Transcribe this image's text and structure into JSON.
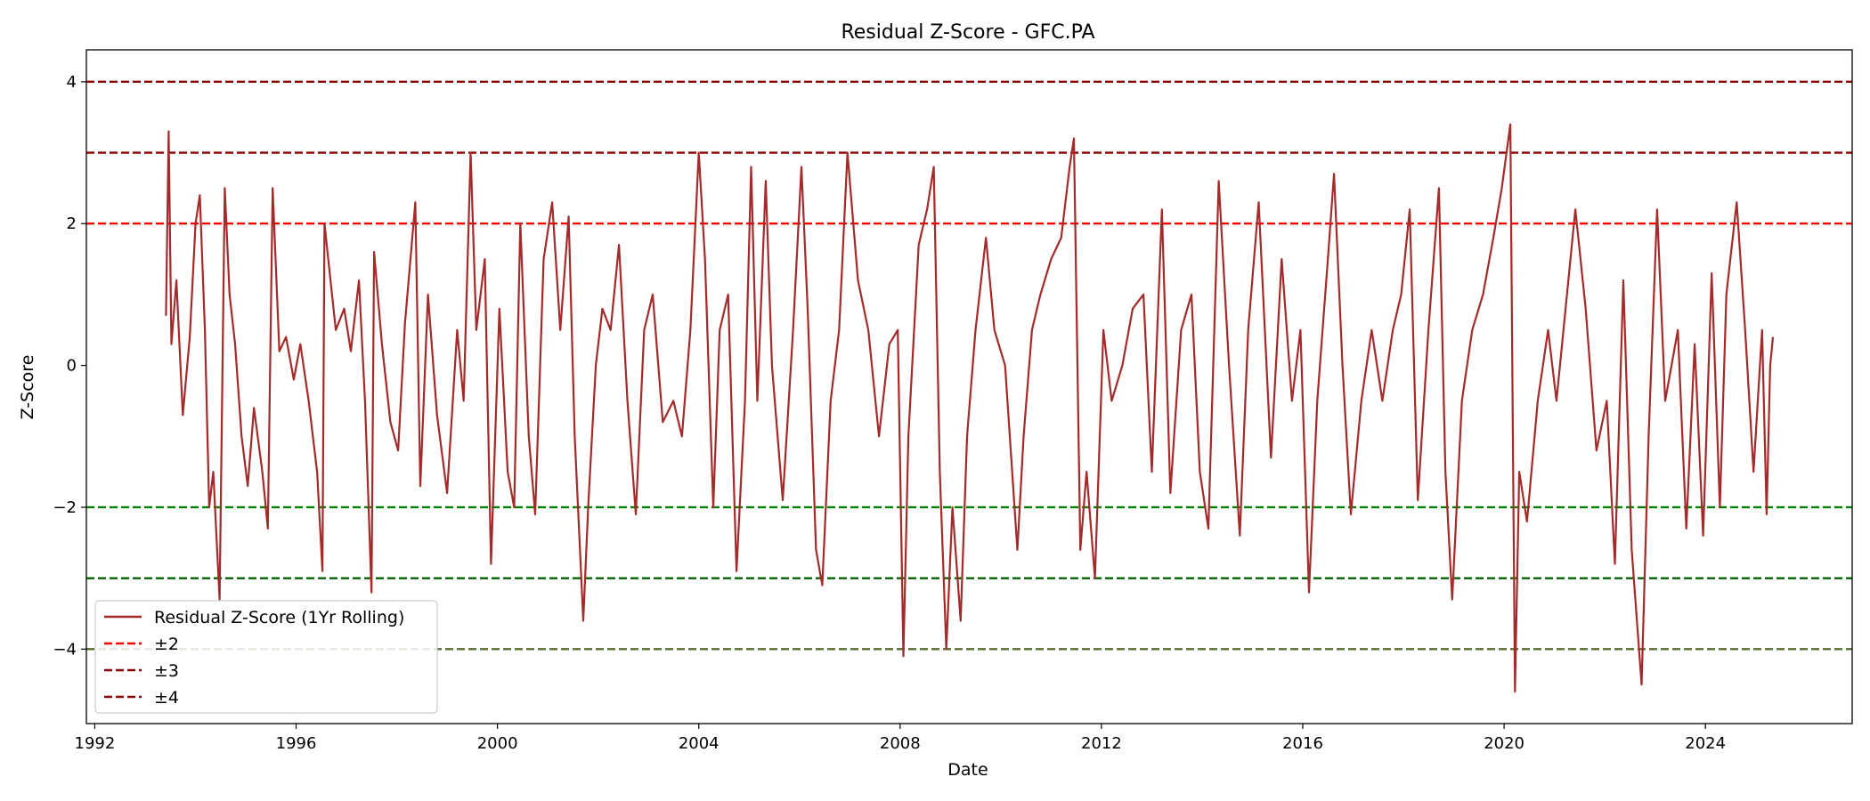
{
  "chart_data": {
    "type": "line",
    "title": "Residual Z-Score - GFC.PA",
    "xlabel": "Date",
    "ylabel": "Z-Score",
    "xlim": [
      "1991-11-01",
      "2026-12-01"
    ],
    "ylim": [
      -5.05,
      4.45
    ],
    "x_ticks": [
      "1992",
      "1996",
      "2000",
      "2004",
      "2008",
      "2012",
      "2016",
      "2020",
      "2024"
    ],
    "y_ticks": [
      4,
      2,
      0,
      -2,
      -4
    ],
    "y_tick_labels": [
      "4",
      "2",
      "0",
      "−2",
      "−4"
    ],
    "grid": false,
    "legend_position": "lower-left",
    "series": [
      {
        "name": "Residual Z-Score (1Yr Rolling)",
        "color": "#a52a2a",
        "points": [
          [
            "1993-06-01",
            0.7
          ],
          [
            "1993-06-20",
            3.3
          ],
          [
            "1993-07-10",
            0.3
          ],
          [
            "1993-08-15",
            1.2
          ],
          [
            "1993-10-01",
            -0.7
          ],
          [
            "1993-11-20",
            0.4
          ],
          [
            "1994-01-01",
            2.0
          ],
          [
            "1994-02-01",
            2.4
          ],
          [
            "1994-03-10",
            0.5
          ],
          [
            "1994-04-10",
            -2.0
          ],
          [
            "1994-05-10",
            -1.5
          ],
          [
            "1994-06-25",
            -3.3
          ],
          [
            "1994-08-01",
            2.5
          ],
          [
            "1994-09-05",
            1.0
          ],
          [
            "1994-10-15",
            0.3
          ],
          [
            "1994-12-01",
            -1.0
          ],
          [
            "1995-01-15",
            -1.7
          ],
          [
            "1995-03-01",
            -0.6
          ],
          [
            "1995-05-01",
            -1.5
          ],
          [
            "1995-06-10",
            -2.3
          ],
          [
            "1995-07-15",
            2.5
          ],
          [
            "1995-09-01",
            0.2
          ],
          [
            "1995-10-20",
            0.4
          ],
          [
            "1995-12-15",
            -0.2
          ],
          [
            "1996-02-01",
            0.3
          ],
          [
            "1996-04-01",
            -0.5
          ],
          [
            "1996-06-01",
            -1.5
          ],
          [
            "1996-07-10",
            -2.9
          ],
          [
            "1996-07-25",
            2.0
          ],
          [
            "1996-09-01",
            1.3
          ],
          [
            "1996-10-15",
            0.5
          ],
          [
            "1996-12-15",
            0.8
          ],
          [
            "1997-02-01",
            0.2
          ],
          [
            "1997-04-01",
            1.2
          ],
          [
            "1997-05-15",
            -0.5
          ],
          [
            "1997-07-01",
            -3.2
          ],
          [
            "1997-07-20",
            1.6
          ],
          [
            "1997-09-15",
            0.3
          ],
          [
            "1997-11-15",
            -0.8
          ],
          [
            "1998-01-10",
            -1.2
          ],
          [
            "1998-03-01",
            0.6
          ],
          [
            "1998-05-15",
            2.3
          ],
          [
            "1998-06-20",
            -1.7
          ],
          [
            "1998-08-15",
            1.0
          ],
          [
            "1998-10-20",
            -0.7
          ],
          [
            "1999-01-01",
            -1.8
          ],
          [
            "1999-03-15",
            0.5
          ],
          [
            "1999-05-01",
            -0.5
          ],
          [
            "1999-06-20",
            3.0
          ],
          [
            "1999-08-01",
            0.5
          ],
          [
            "1999-10-01",
            1.5
          ],
          [
            "1999-11-15",
            -2.8
          ],
          [
            "2000-01-15",
            0.8
          ],
          [
            "2000-03-15",
            -1.5
          ],
          [
            "2000-05-01",
            -2.0
          ],
          [
            "2000-06-15",
            2.0
          ],
          [
            "2000-08-15",
            -1.0
          ],
          [
            "2000-10-01",
            -2.1
          ],
          [
            "2000-12-01",
            1.5
          ],
          [
            "2001-02-01",
            2.3
          ],
          [
            "2001-04-01",
            0.5
          ],
          [
            "2001-06-01",
            2.1
          ],
          [
            "2001-07-15",
            -1.0
          ],
          [
            "2001-09-15",
            -3.6
          ],
          [
            "2001-10-20",
            -2.0
          ],
          [
            "2001-12-15",
            0.0
          ],
          [
            "2002-02-01",
            0.8
          ],
          [
            "2002-04-01",
            0.5
          ],
          [
            "2002-06-01",
            1.7
          ],
          [
            "2002-08-01",
            -0.5
          ],
          [
            "2002-10-01",
            -2.1
          ],
          [
            "2002-12-01",
            0.5
          ],
          [
            "2003-02-01",
            1.0
          ],
          [
            "2003-04-15",
            -0.8
          ],
          [
            "2003-07-01",
            -0.5
          ],
          [
            "2003-09-01",
            -1.0
          ],
          [
            "2003-11-01",
            0.5
          ],
          [
            "2004-01-01",
            3.0
          ],
          [
            "2004-02-15",
            1.5
          ],
          [
            "2004-04-15",
            -2.0
          ],
          [
            "2004-06-01",
            0.5
          ],
          [
            "2004-08-01",
            1.0
          ],
          [
            "2004-10-01",
            -2.9
          ],
          [
            "2004-12-01",
            -0.5
          ],
          [
            "2005-01-15",
            2.8
          ],
          [
            "2005-03-01",
            -0.5
          ],
          [
            "2005-05-01",
            2.6
          ],
          [
            "2005-06-15",
            0.0
          ],
          [
            "2005-09-01",
            -1.9
          ],
          [
            "2005-11-15",
            0.5
          ],
          [
            "2006-01-15",
            2.8
          ],
          [
            "2006-03-01",
            0.8
          ],
          [
            "2006-05-01",
            -2.6
          ],
          [
            "2006-06-15",
            -3.1
          ],
          [
            "2006-08-15",
            -0.5
          ],
          [
            "2006-10-15",
            0.5
          ],
          [
            "2006-12-15",
            3.0
          ],
          [
            "2007-03-01",
            1.2
          ],
          [
            "2007-05-15",
            0.5
          ],
          [
            "2007-08-01",
            -1.0
          ],
          [
            "2007-10-15",
            0.3
          ],
          [
            "2007-12-15",
            0.5
          ],
          [
            "2008-01-25",
            -4.1
          ],
          [
            "2008-03-01",
            -1.0
          ],
          [
            "2008-05-15",
            1.7
          ],
          [
            "2008-07-15",
            2.2
          ],
          [
            "2008-09-01",
            2.8
          ],
          [
            "2008-10-15",
            -1.5
          ],
          [
            "2008-12-01",
            -4.0
          ],
          [
            "2009-01-15",
            -2.0
          ],
          [
            "2009-03-15",
            -3.6
          ],
          [
            "2009-05-01",
            -1.0
          ],
          [
            "2009-07-01",
            0.5
          ],
          [
            "2009-09-15",
            1.8
          ],
          [
            "2009-11-15",
            0.5
          ],
          [
            "2010-02-01",
            0.0
          ],
          [
            "2010-05-01",
            -2.6
          ],
          [
            "2010-06-15",
            -1.0
          ],
          [
            "2010-08-15",
            0.5
          ],
          [
            "2010-10-15",
            1.0
          ],
          [
            "2011-01-01",
            1.5
          ],
          [
            "2011-03-15",
            1.8
          ],
          [
            "2011-05-15",
            2.8
          ],
          [
            "2011-06-15",
            3.2
          ],
          [
            "2011-08-01",
            -2.6
          ],
          [
            "2011-09-15",
            -1.5
          ],
          [
            "2011-11-15",
            -3.0
          ],
          [
            "2012-01-15",
            0.5
          ],
          [
            "2012-03-15",
            -0.5
          ],
          [
            "2012-06-01",
            0.0
          ],
          [
            "2012-08-15",
            0.8
          ],
          [
            "2012-11-01",
            1.0
          ],
          [
            "2013-01-01",
            -1.5
          ],
          [
            "2013-03-15",
            2.2
          ],
          [
            "2013-05-15",
            -1.8
          ],
          [
            "2013-08-01",
            0.5
          ],
          [
            "2013-10-15",
            1.0
          ],
          [
            "2013-12-15",
            -1.5
          ],
          [
            "2014-02-15",
            -2.3
          ],
          [
            "2014-05-01",
            2.6
          ],
          [
            "2014-07-15",
            0.0
          ],
          [
            "2014-10-01",
            -2.4
          ],
          [
            "2014-12-01",
            0.5
          ],
          [
            "2015-02-15",
            2.3
          ],
          [
            "2015-05-15",
            -1.3
          ],
          [
            "2015-08-01",
            1.5
          ],
          [
            "2015-10-15",
            -0.5
          ],
          [
            "2015-12-15",
            0.5
          ],
          [
            "2016-02-15",
            -3.2
          ],
          [
            "2016-04-15",
            -0.5
          ],
          [
            "2016-07-01",
            1.5
          ],
          [
            "2016-08-15",
            2.7
          ],
          [
            "2016-10-15",
            0.0
          ],
          [
            "2016-12-15",
            -2.1
          ],
          [
            "2017-03-01",
            -0.5
          ],
          [
            "2017-05-15",
            0.5
          ],
          [
            "2017-08-01",
            -0.5
          ],
          [
            "2017-10-15",
            0.5
          ],
          [
            "2017-12-15",
            1.0
          ],
          [
            "2018-02-15",
            2.2
          ],
          [
            "2018-04-15",
            -1.9
          ],
          [
            "2018-07-01",
            0.5
          ],
          [
            "2018-09-15",
            2.5
          ],
          [
            "2018-11-01",
            -1.5
          ],
          [
            "2018-12-20",
            -3.3
          ],
          [
            "2019-03-01",
            -0.5
          ],
          [
            "2019-05-15",
            0.5
          ],
          [
            "2019-08-01",
            1.0
          ],
          [
            "2019-10-15",
            1.8
          ],
          [
            "2019-12-15",
            2.5
          ],
          [
            "2020-02-15",
            3.4
          ],
          [
            "2020-03-20",
            -4.6
          ],
          [
            "2020-04-20",
            -1.5
          ],
          [
            "2020-06-15",
            -2.2
          ],
          [
            "2020-09-01",
            -0.5
          ],
          [
            "2020-11-15",
            0.5
          ],
          [
            "2021-01-15",
            -0.5
          ],
          [
            "2021-04-01",
            1.0
          ],
          [
            "2021-06-01",
            2.2
          ],
          [
            "2021-08-15",
            0.8
          ],
          [
            "2021-11-01",
            -1.2
          ],
          [
            "2022-01-15",
            -0.5
          ],
          [
            "2022-03-15",
            -2.8
          ],
          [
            "2022-05-15",
            1.2
          ],
          [
            "2022-07-15",
            -2.6
          ],
          [
            "2022-09-25",
            -4.5
          ],
          [
            "2022-11-15",
            -1.0
          ],
          [
            "2023-01-15",
            2.2
          ],
          [
            "2023-03-15",
            -0.5
          ],
          [
            "2023-06-15",
            0.5
          ],
          [
            "2023-08-15",
            -2.3
          ],
          [
            "2023-10-15",
            0.3
          ],
          [
            "2023-12-15",
            -2.4
          ],
          [
            "2024-02-15",
            1.3
          ],
          [
            "2024-04-15",
            -2.0
          ],
          [
            "2024-06-01",
            1.0
          ],
          [
            "2024-08-15",
            2.3
          ],
          [
            "2024-10-15",
            0.5
          ],
          [
            "2024-12-15",
            -1.5
          ],
          [
            "2025-02-15",
            0.5
          ],
          [
            "2025-03-20",
            -2.1
          ],
          [
            "2025-04-15",
            0.0
          ],
          [
            "2025-05-05",
            0.4
          ]
        ]
      }
    ],
    "reference_lines": [
      {
        "y": 4,
        "color": "#8b0000",
        "style": "dashed",
        "legend": "±4"
      },
      {
        "y": 3,
        "color": "#8b0000",
        "style": "dashed",
        "legend": "±3"
      },
      {
        "y": 2,
        "color": "#ff0000",
        "style": "dashed",
        "legend": "±2"
      },
      {
        "y": -2,
        "color": "#008000",
        "style": "dashed"
      },
      {
        "y": -3,
        "color": "#006400",
        "style": "dashed"
      },
      {
        "y": -4,
        "color": "#556b2f",
        "style": "dashed"
      }
    ],
    "legend": [
      {
        "label": "Residual Z-Score (1Yr Rolling)",
        "color": "#a52a2a",
        "style": "solid"
      },
      {
        "label": "±2",
        "color": "#ff0000",
        "style": "dashed"
      },
      {
        "label": "±3",
        "color": "#8b0000",
        "style": "dashed"
      },
      {
        "label": "±4",
        "color": "#8b0000",
        "style": "dashed"
      }
    ]
  }
}
